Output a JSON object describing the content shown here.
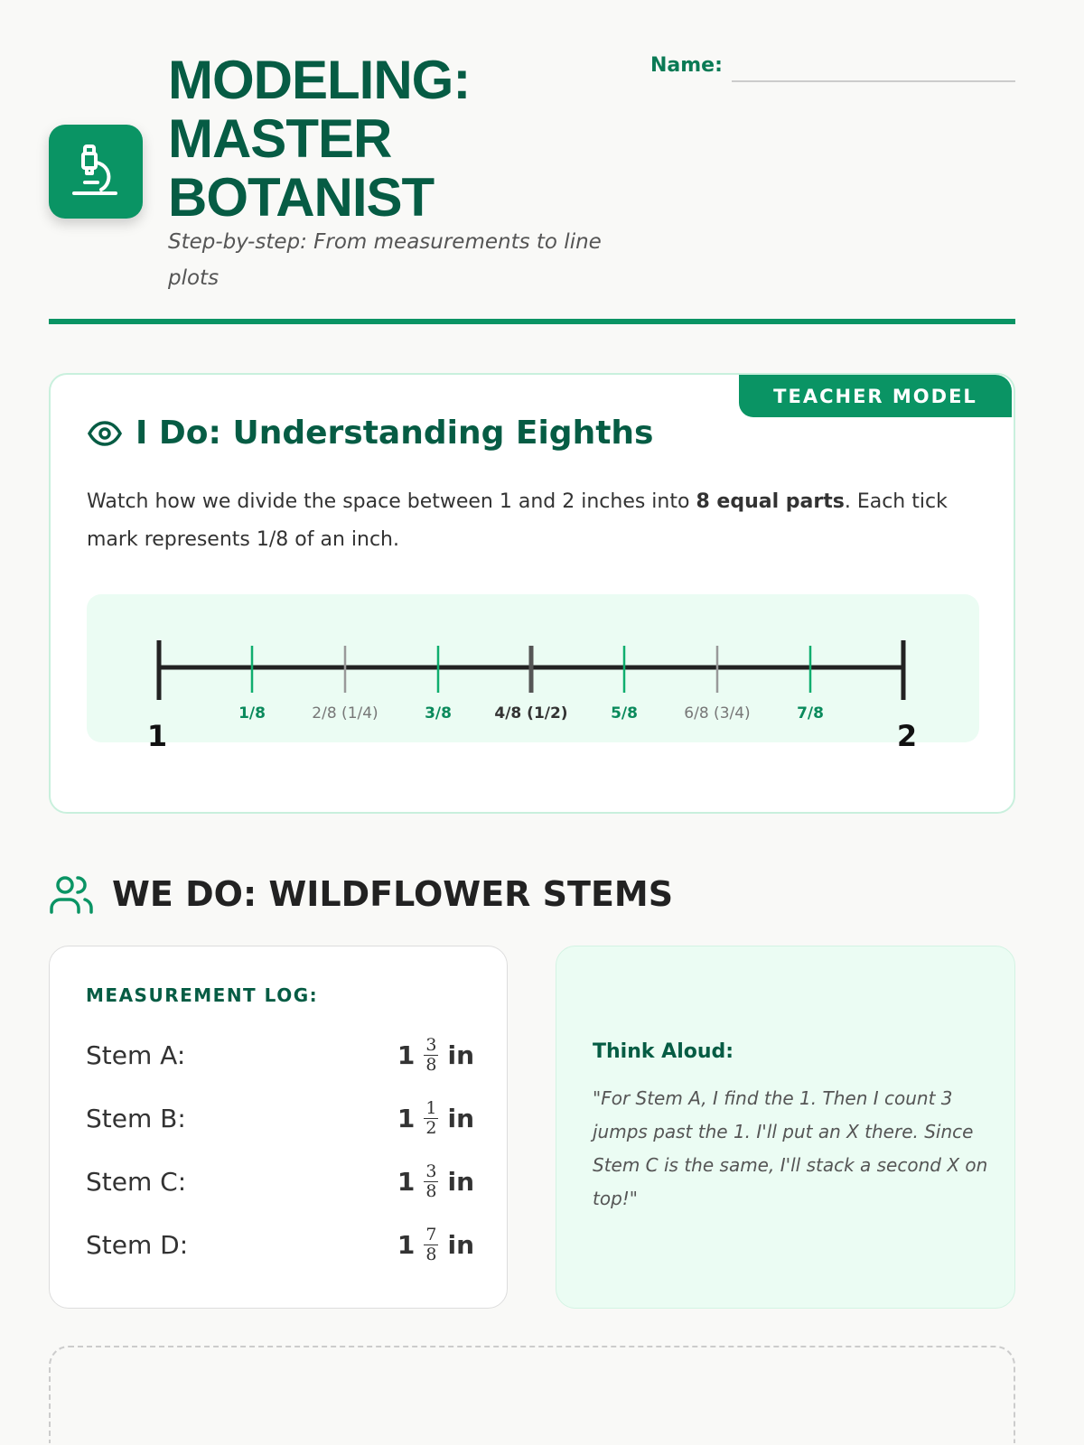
{
  "header": {
    "title_lines": [
      "MODELING:",
      "MASTER",
      "BOTANIST"
    ],
    "subtitle": "Step-by-step: From measurements to line plots",
    "name_label": "Name:",
    "icon": "microscope-icon"
  },
  "i_do": {
    "badge": "TEACHER MODEL",
    "heading": "I Do: Understanding Eighths",
    "icon": "eye-icon",
    "para_pre": "Watch how we divide the space between 1 and 2 inches into ",
    "para_bold": "8 equal parts",
    "para_post": ". Each tick mark represents 1/8 of an inch.",
    "number_line": {
      "start": "1",
      "end": "2",
      "ticks": [
        {
          "label": "1/8",
          "kind": "eighth"
        },
        {
          "label": "2/8 (1/4)",
          "kind": "quarter"
        },
        {
          "label": "3/8",
          "kind": "eighth"
        },
        {
          "label": "4/8 (1/2)",
          "kind": "half"
        },
        {
          "label": "5/8",
          "kind": "eighth"
        },
        {
          "label": "6/8 (3/4)",
          "kind": "quarter"
        },
        {
          "label": "7/8",
          "kind": "eighth"
        }
      ]
    }
  },
  "we_do": {
    "heading": "WE DO: WILDFLOWER STEMS",
    "icon": "users-icon",
    "log_title": "MEASUREMENT LOG:",
    "stems": [
      {
        "label": "Stem A:",
        "whole": "1",
        "num": "3",
        "den": "8",
        "unit": "in"
      },
      {
        "label": "Stem B:",
        "whole": "1",
        "num": "1",
        "den": "2",
        "unit": "in"
      },
      {
        "label": "Stem C:",
        "whole": "1",
        "num": "3",
        "den": "8",
        "unit": "in"
      },
      {
        "label": "Stem D:",
        "whole": "1",
        "num": "7",
        "den": "8",
        "unit": "in"
      }
    ],
    "think_title": "Think Aloud:",
    "think_text": "\"For Stem A, I find the 1. Then I count 3 jumps past the 1. I'll put an X there. Since Stem C is the same, I'll stack a second X on top!\""
  },
  "colors": {
    "primary": "#0a9464",
    "dark": "#065c44",
    "tint": "#ebfcf3"
  }
}
